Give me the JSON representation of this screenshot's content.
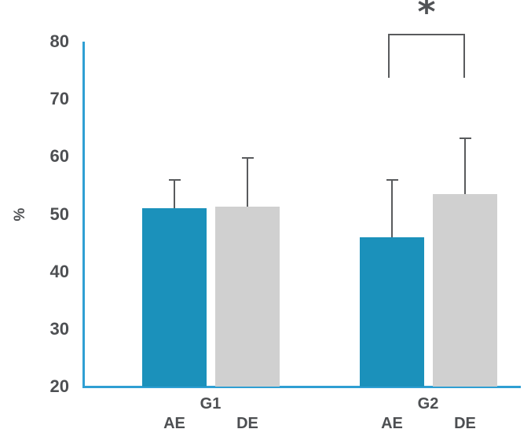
{
  "chart_data": {
    "type": "bar",
    "title": "",
    "xlabel": "",
    "ylabel": "%",
    "ylim": [
      20,
      80
    ],
    "yticks": [
      20,
      30,
      40,
      50,
      60,
      70,
      80
    ],
    "grid": false,
    "legend_position": "none",
    "categories": [
      "G1",
      "G2"
    ],
    "series": [
      {
        "name": "AE",
        "color": "#1B91BB",
        "values": [
          51.0,
          46.0
        ],
        "errors_plus": [
          5.0,
          10.0
        ]
      },
      {
        "name": "DE",
        "color": "#D0D0D0",
        "values": [
          51.3,
          53.5
        ],
        "errors_plus": [
          8.5,
          9.7
        ]
      }
    ],
    "error_bars": {
      "direction": "upper-only",
      "color": "#595B5D"
    },
    "significance": [
      {
        "category": "G2",
        "from_series": "AE",
        "to_series": "DE",
        "label": "*"
      }
    ]
  },
  "colors": {
    "axis": "#2F9FD3",
    "bar_ae": "#1B91BB",
    "bar_de": "#D0D0D0",
    "error_bar": "#595B5D",
    "text": "#4D4F52",
    "background": "#FFFFFF"
  }
}
